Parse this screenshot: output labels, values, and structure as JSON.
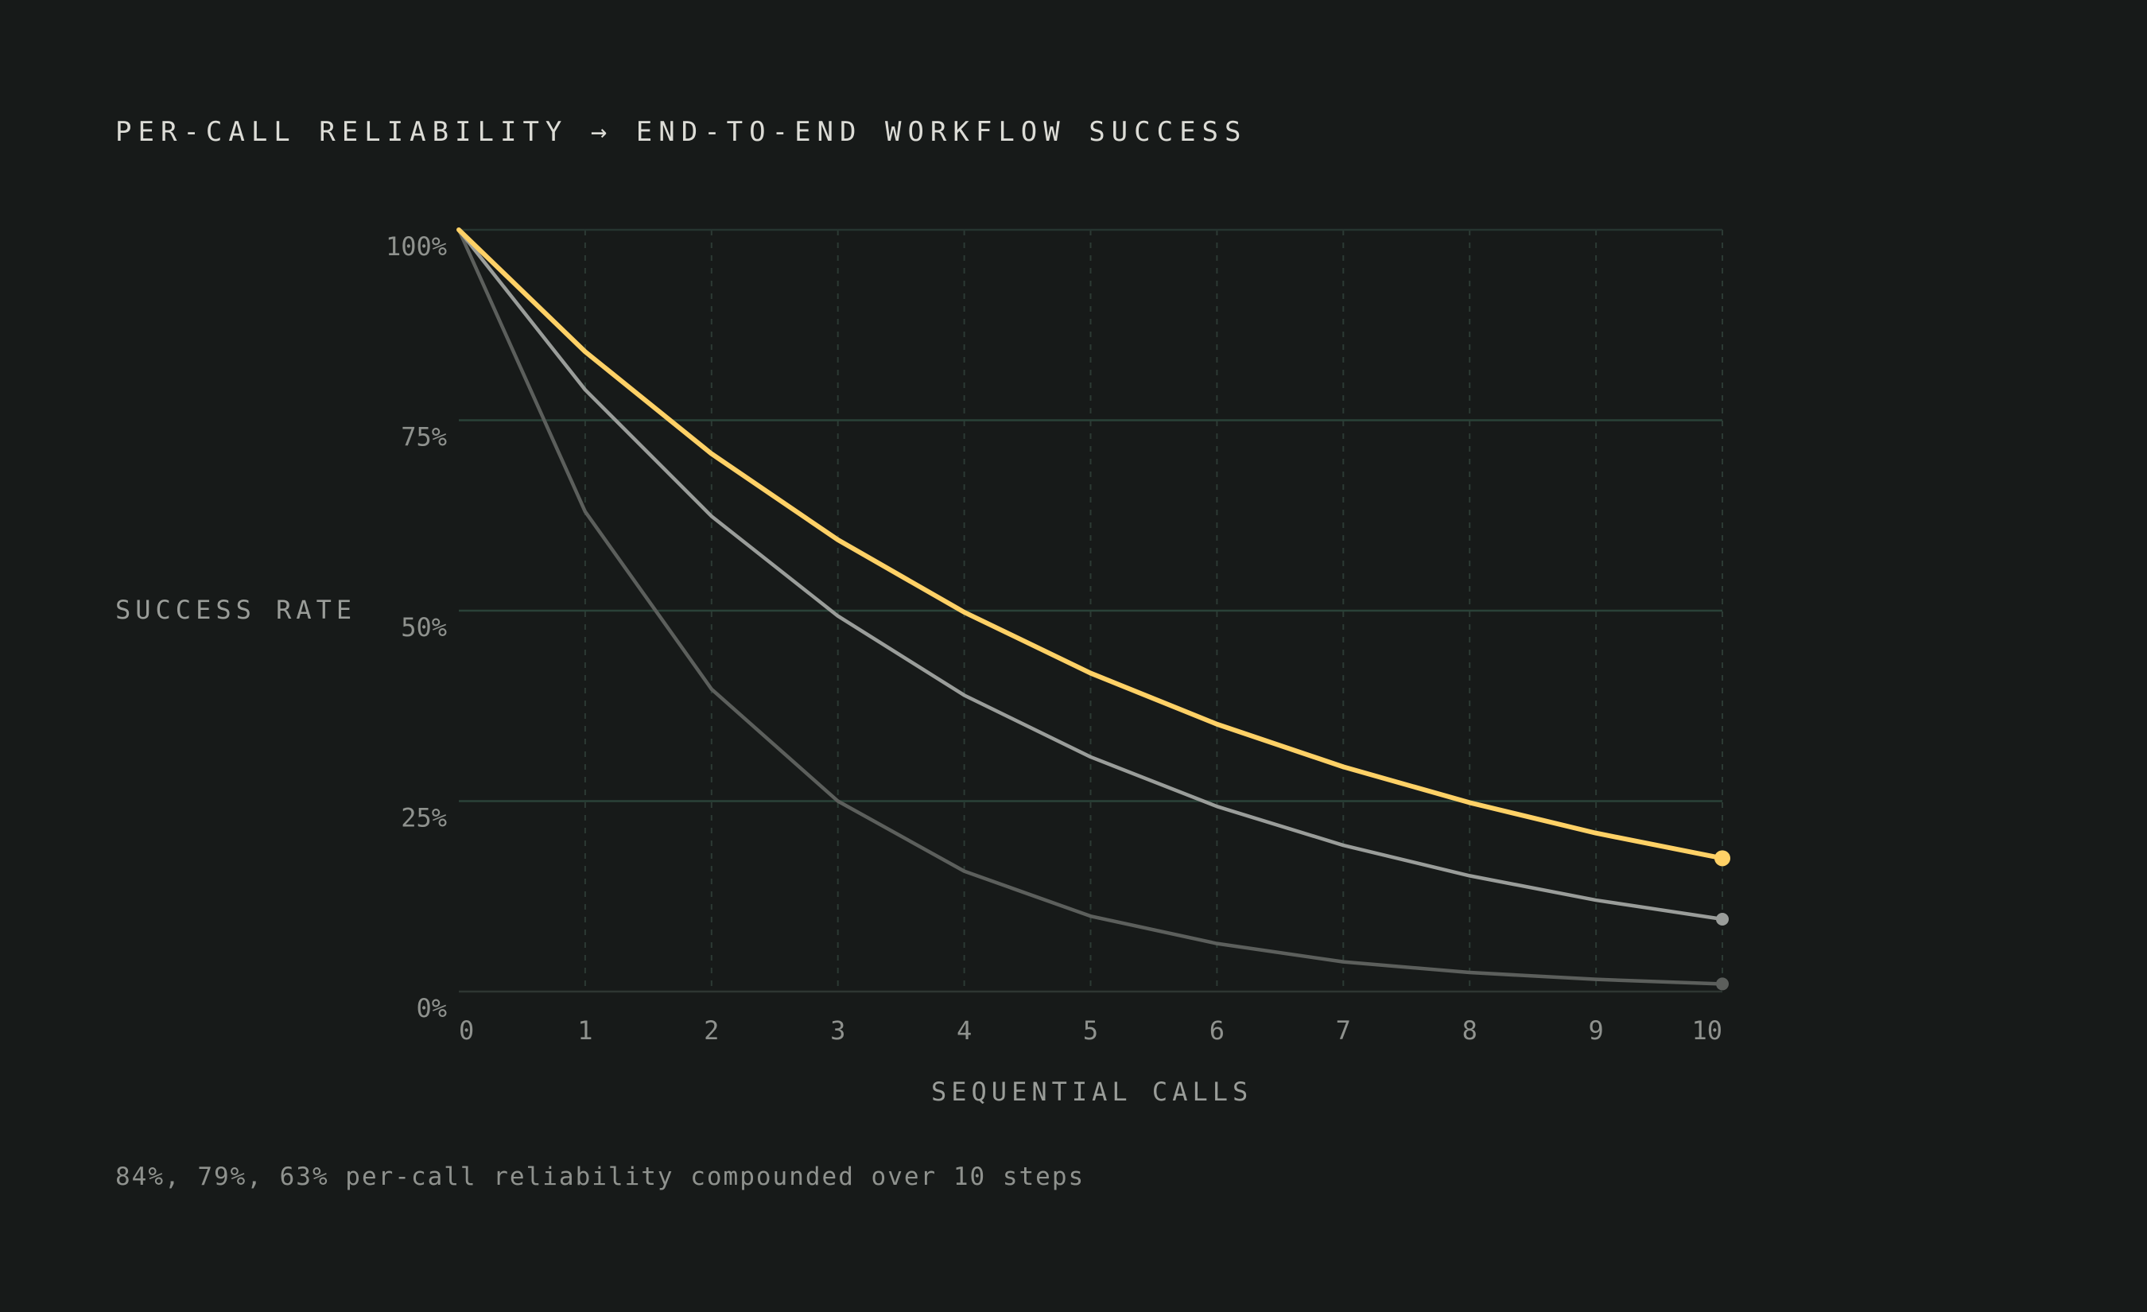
{
  "title": "PER-CALL RELIABILITY → END-TO-END WORKFLOW SUCCESS",
  "note": "84%, 79%, 63% per-call reliability compounded over 10 steps",
  "chart_data": {
    "type": "line",
    "xlabel": "SEQUENTIAL CALLS",
    "ylabel": "SUCCESS RATE",
    "x": [
      0,
      1,
      2,
      3,
      4,
      5,
      6,
      7,
      8,
      9,
      10
    ],
    "xlim": [
      0,
      10
    ],
    "ylim": [
      0,
      100
    ],
    "y_ticks": [
      "0%",
      "25%",
      "50%",
      "75%",
      "100%"
    ],
    "y_tick_values": [
      0,
      25,
      50,
      75,
      100
    ],
    "x_ticks": [
      "0",
      "1",
      "2",
      "3",
      "4",
      "5",
      "6",
      "7",
      "8",
      "9",
      "10"
    ],
    "grid": true,
    "series": [
      {
        "color": "#ffd166",
        "values": [
          100,
          84,
          70.6,
          59.3,
          49.8,
          41.8,
          35.1,
          29.5,
          24.8,
          20.8,
          17.5
        ]
      },
      {
        "color": "#9a9d9a",
        "values": [
          100,
          79,
          62.4,
          49.3,
          38.9,
          30.8,
          24.3,
          19.2,
          15.2,
          12.0,
          9.5
        ]
      },
      {
        "color": "#5c5f5c",
        "values": [
          100,
          63,
          39.7,
          25.0,
          15.8,
          9.9,
          6.3,
          3.9,
          2.5,
          1.6,
          1.0
        ]
      }
    ]
  }
}
